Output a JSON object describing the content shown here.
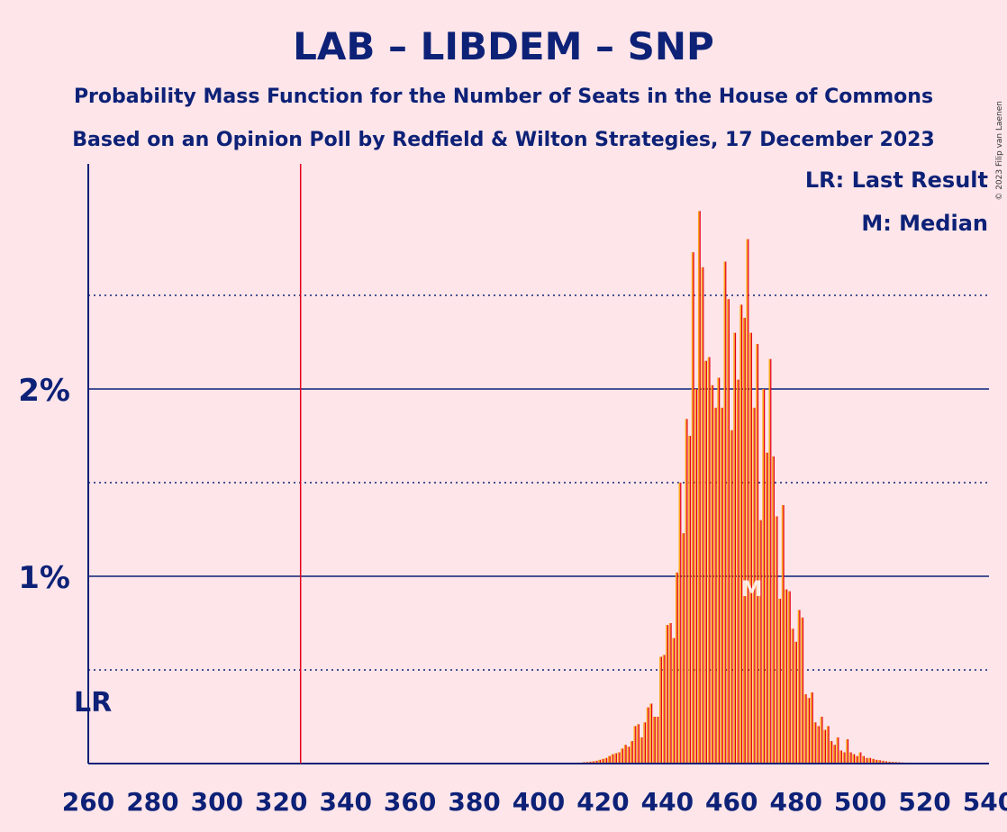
{
  "title": "LAB – LIBDEM – SNP",
  "subtitle": "Probability Mass Function for the Number of Seats in the House of Commons",
  "subtitle2": "Based on an Opinion Poll by Redfield & Wilton Strategies, 17 December 2023",
  "copyright": "© 2023 Filip van Laenen",
  "legend": {
    "lr": "LR: Last Result",
    "m": "M: Median"
  },
  "markers": {
    "lr_label": "LR",
    "m_label": "M"
  },
  "colors": {
    "background": "#FDE5E9",
    "text": "#0D2177",
    "bar_primary": "#E4001B",
    "bar_secondary": "#FAA61A",
    "last_result_line": "#E4001B"
  },
  "chart_data": {
    "type": "bar",
    "xlim": [
      260,
      540
    ],
    "ylim": [
      0,
      3.2
    ],
    "x_ticks": [
      260,
      280,
      300,
      320,
      340,
      360,
      380,
      400,
      420,
      440,
      460,
      480,
      500,
      520,
      540
    ],
    "y_major_ticks": [
      1,
      2
    ],
    "y_tick_labels": [
      "1%",
      "2%"
    ],
    "y_dotted_lines": [
      0.5,
      1.5,
      2.5
    ],
    "last_result": 326,
    "median": 464,
    "x": [
      412,
      413,
      414,
      415,
      416,
      417,
      418,
      419,
      420,
      421,
      422,
      423,
      424,
      425,
      426,
      427,
      428,
      429,
      430,
      431,
      432,
      433,
      434,
      435,
      436,
      437,
      438,
      439,
      440,
      441,
      442,
      443,
      444,
      445,
      446,
      447,
      448,
      449,
      450,
      451,
      452,
      453,
      454,
      455,
      456,
      457,
      458,
      459,
      460,
      461,
      462,
      463,
      464,
      465,
      466,
      467,
      468,
      469,
      470,
      471,
      472,
      473,
      474,
      475,
      476,
      477,
      478,
      479,
      480,
      481,
      482,
      483,
      484,
      485,
      486,
      487,
      488,
      489,
      490,
      491,
      492,
      493,
      494,
      495,
      496,
      497,
      498,
      499,
      500,
      501,
      502,
      503,
      504,
      505,
      506,
      507,
      508,
      509,
      510,
      511,
      512,
      513,
      514,
      515,
      516,
      517,
      518,
      519,
      520,
      521,
      522,
      523,
      524,
      525,
      526,
      527,
      528,
      529,
      530
    ],
    "series": [
      {
        "values": [
          0.005,
          0.005,
          0.007,
          0.008,
          0.01,
          0.012,
          0.015,
          0.02,
          0.025,
          0.03,
          0.04,
          0.05,
          0.055,
          0.06,
          0.08,
          0.1,
          0.09,
          0.12,
          0.2,
          0.21,
          0.14,
          0.22,
          0.3,
          0.32,
          0.25,
          0.25,
          0.57,
          0.58,
          0.74,
          0.75,
          0.67,
          1.02,
          1.5,
          1.23,
          1.84,
          1.75,
          2.73,
          2.0,
          2.95,
          2.65,
          2.15,
          2.17,
          2.02,
          1.9,
          2.06,
          1.9,
          2.68,
          2.48,
          1.78,
          2.3,
          2.05,
          2.45,
          2.38,
          2.8,
          2.3,
          1.9,
          2.24,
          1.3,
          2.0,
          1.66,
          2.16,
          1.64,
          1.32,
          0.88,
          1.38,
          0.93,
          0.92,
          0.72,
          0.65,
          0.82,
          0.78,
          0.37,
          0.35,
          0.38,
          0.22,
          0.2,
          0.25,
          0.18,
          0.2,
          0.12,
          0.1,
          0.14,
          0.07,
          0.06,
          0.13,
          0.06,
          0.05,
          0.04,
          0.06,
          0.04,
          0.03,
          0.03,
          0.025,
          0.02,
          0.018,
          0.015,
          0.012,
          0.01,
          0.009,
          0.008,
          0.007,
          0.006,
          0.005,
          0.005,
          0.004,
          0.004,
          0.003,
          0.003,
          0.002,
          0.002,
          0.002,
          0.002,
          0.001,
          0.001,
          0.001,
          0.001,
          0.001,
          0.001,
          0.001
        ]
      }
    ]
  }
}
